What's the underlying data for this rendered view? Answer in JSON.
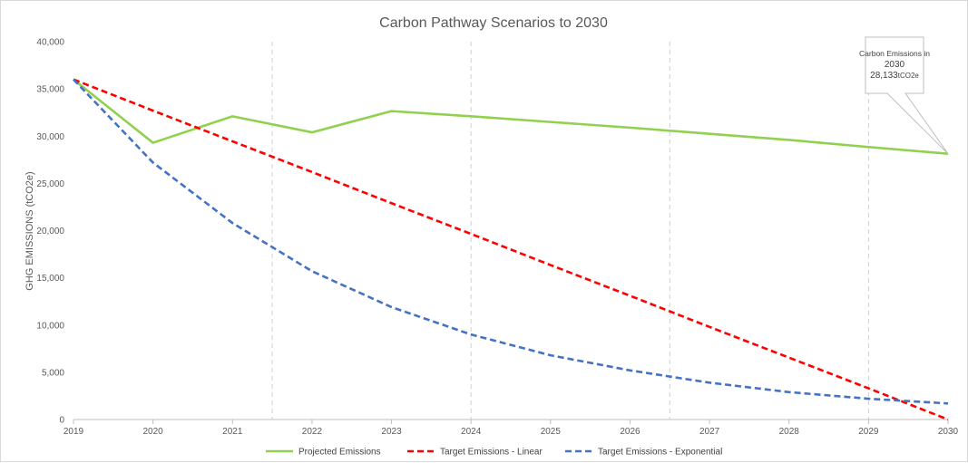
{
  "chart_data": {
    "type": "line",
    "title": "Carbon Pathway Scenarios to 2030",
    "xlabel": "",
    "ylabel": "GHG EMISSIONS (tCO2e)",
    "x": [
      "2019",
      "2020",
      "2021",
      "2022",
      "2023",
      "2024",
      "2025",
      "2026",
      "2027",
      "2028",
      "2029",
      "2030"
    ],
    "ylim": [
      0,
      40000
    ],
    "yticks": [
      "0",
      "5,000",
      "10,000",
      "15,000",
      "20,000",
      "25,000",
      "30,000",
      "35,000",
      "40,000"
    ],
    "grid": "vertical dashed lines at 2021.5, 2024, 2026.5, 2029",
    "legend_position": "bottom",
    "series": [
      {
        "name": "Projected Emissions",
        "color": "#92d050",
        "style": "solid",
        "values": [
          36000,
          29300,
          32100,
          30400,
          32650,
          32100,
          31500,
          30900,
          30250,
          29600,
          28850,
          28133
        ]
      },
      {
        "name": "Target Emissions - Linear",
        "color": "#ff0000",
        "style": "dashed",
        "values": [
          36000,
          32700,
          29450,
          26200,
          22900,
          19650,
          16350,
          13100,
          9800,
          6550,
          3300,
          0
        ]
      },
      {
        "name": "Target Emissions - Exponential",
        "color": "#4472c4",
        "style": "dashed",
        "values": [
          36000,
          27200,
          20800,
          15700,
          11900,
          9000,
          6800,
          5200,
          3900,
          2900,
          2200,
          1700
        ]
      }
    ],
    "annotation": {
      "line1": "Carbon Emissions in",
      "line2": "2030",
      "value": "28,133",
      "unit": "tCO2e",
      "target_x": "2030",
      "target_y": 28133
    }
  }
}
